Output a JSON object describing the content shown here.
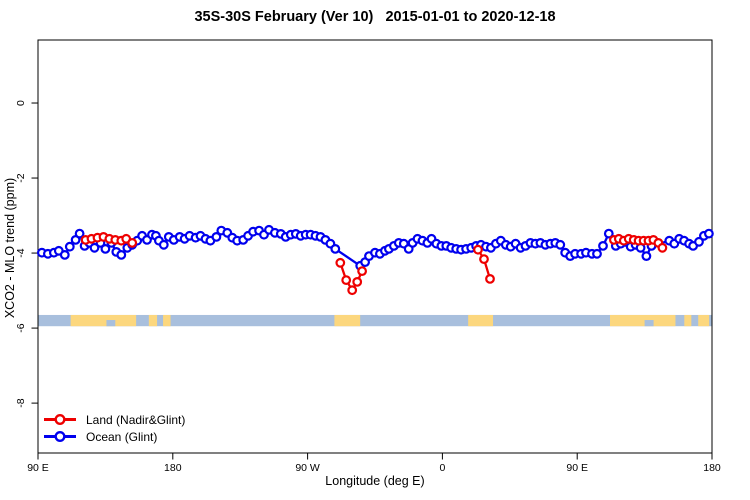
{
  "chart_data": {
    "type": "line",
    "title": "35S-30S February (Ver 10)   2015-01-01 to 2020-12-18",
    "xlabel": "Longitude (deg E)",
    "ylabel": "XCO2 - MLO trend (ppm)",
    "xlim": [
      90,
      540
    ],
    "ylim": [
      -9.33,
      1.68
    ],
    "grid": false,
    "legend_position": "bottom-left",
    "x_ticks": [
      {
        "value": 90,
        "label": "90 E"
      },
      {
        "value": 180,
        "label": "180"
      },
      {
        "value": 270,
        "label": "90 W"
      },
      {
        "value": 360,
        "label": "0"
      },
      {
        "value": 450,
        "label": "90 E"
      },
      {
        "value": 540,
        "label": "180"
      }
    ],
    "y_ticks": [
      {
        "value": 0,
        "label": "0"
      },
      {
        "value": -2,
        "label": "-2"
      },
      {
        "value": -4,
        "label": "-4"
      },
      {
        "value": -6,
        "label": "-6"
      },
      {
        "value": -8,
        "label": "-8"
      }
    ],
    "series": [
      {
        "name": "Land (Nadir&Glint)",
        "color": "#ee0000",
        "marker": "open-circle",
        "segments": [
          [
            [
              121.8,
              -3.65
            ],
            [
              125.7,
              -3.62
            ],
            [
              129.7,
              -3.59
            ],
            [
              133.7,
              -3.57
            ],
            [
              137.7,
              -3.62
            ],
            [
              141.6,
              -3.65
            ],
            [
              145.6,
              -3.67
            ],
            [
              148.9,
              -3.62
            ],
            [
              152.9,
              -3.73
            ]
          ],
          [
            [
              291.8,
              -4.26
            ],
            [
              295.8,
              -4.72
            ],
            [
              299.8,
              -4.99
            ],
            [
              303.1,
              -4.77
            ],
            [
              306.4,
              -4.48
            ]
          ],
          [
            [
              383.8,
              -3.91
            ],
            [
              387.8,
              -4.16
            ],
            [
              391.8,
              -4.69
            ]
          ],
          [
            [
              474.5,
              -3.65
            ],
            [
              477.8,
              -3.62
            ],
            [
              481.1,
              -3.67
            ],
            [
              484.4,
              -3.62
            ],
            [
              487.7,
              -3.65
            ],
            [
              491.0,
              -3.67
            ],
            [
              494.3,
              -3.67
            ],
            [
              497.6,
              -3.67
            ],
            [
              500.9,
              -3.65
            ],
            [
              504.2,
              -3.73
            ],
            [
              506.9,
              -3.86
            ]
          ]
        ]
      },
      {
        "name": "Ocean (Glint)",
        "color": "#0000ee",
        "marker": "open-circle",
        "segments": [
          [
            [
              92.6,
              -3.99
            ],
            [
              96.6,
              -4.02
            ],
            [
              100.6,
              -3.99
            ],
            [
              103.9,
              -3.94
            ],
            [
              107.9,
              -4.05
            ],
            [
              111.2,
              -3.83
            ],
            [
              115.1,
              -3.65
            ],
            [
              117.8,
              -3.48
            ],
            [
              121.1,
              -3.81
            ],
            [
              124.4,
              -3.73
            ],
            [
              127.7,
              -3.86
            ],
            [
              131.7,
              -3.73
            ],
            [
              135.0,
              -3.89
            ],
            [
              139.0,
              -3.73
            ],
            [
              142.3,
              -3.97
            ],
            [
              145.6,
              -4.05
            ],
            [
              149.6,
              -3.86
            ],
            [
              152.9,
              -3.78
            ],
            [
              156.2,
              -3.67
            ],
            [
              159.5,
              -3.54
            ],
            [
              162.8,
              -3.65
            ],
            [
              166.1,
              -3.51
            ],
            [
              168.7,
              -3.54
            ],
            [
              170.7,
              -3.67
            ],
            [
              174.0,
              -3.78
            ],
            [
              177.3,
              -3.57
            ],
            [
              180.7,
              -3.65
            ],
            [
              184.6,
              -3.57
            ],
            [
              187.9,
              -3.62
            ],
            [
              191.2,
              -3.54
            ],
            [
              195.2,
              -3.59
            ],
            [
              198.5,
              -3.54
            ],
            [
              201.8,
              -3.62
            ],
            [
              205.1,
              -3.67
            ],
            [
              209.1,
              -3.57
            ],
            [
              212.4,
              -3.4
            ],
            [
              216.4,
              -3.46
            ],
            [
              219.7,
              -3.59
            ],
            [
              223.0,
              -3.67
            ],
            [
              227.0,
              -3.65
            ],
            [
              230.3,
              -3.54
            ],
            [
              233.6,
              -3.43
            ],
            [
              237.6,
              -3.4
            ],
            [
              240.9,
              -3.51
            ],
            [
              244.2,
              -3.38
            ],
            [
              248.2,
              -3.46
            ],
            [
              252.1,
              -3.49
            ],
            [
              255.4,
              -3.57
            ],
            [
              258.8,
              -3.51
            ],
            [
              262.1,
              -3.49
            ],
            [
              265.4,
              -3.54
            ],
            [
              268.7,
              -3.51
            ],
            [
              272.0,
              -3.51
            ],
            [
              275.3,
              -3.54
            ],
            [
              278.6,
              -3.57
            ],
            [
              281.9,
              -3.65
            ],
            [
              285.2,
              -3.75
            ],
            [
              288.5,
              -3.89
            ],
            [
              305.1,
              -4.34
            ],
            [
              308.4,
              -4.24
            ],
            [
              311.0,
              -4.08
            ],
            [
              315.0,
              -3.99
            ],
            [
              318.3,
              -4.02
            ],
            [
              321.6,
              -3.94
            ],
            [
              324.3,
              -3.89
            ],
            [
              327.6,
              -3.81
            ],
            [
              330.9,
              -3.73
            ],
            [
              334.2,
              -3.75
            ],
            [
              337.5,
              -3.89
            ],
            [
              340.1,
              -3.73
            ],
            [
              343.4,
              -3.62
            ],
            [
              346.7,
              -3.67
            ],
            [
              350.0,
              -3.73
            ],
            [
              352.7,
              -3.62
            ],
            [
              356.0,
              -3.75
            ],
            [
              359.3,
              -3.81
            ],
            [
              362.6,
              -3.81
            ],
            [
              365.9,
              -3.86
            ],
            [
              369.2,
              -3.89
            ],
            [
              372.5,
              -3.91
            ],
            [
              375.8,
              -3.89
            ],
            [
              379.2,
              -3.86
            ],
            [
              382.5,
              -3.81
            ],
            [
              385.8,
              -3.78
            ],
            [
              389.1,
              -3.83
            ],
            [
              392.4,
              -3.86
            ],
            [
              395.7,
              -3.75
            ],
            [
              399.0,
              -3.67
            ],
            [
              402.3,
              -3.78
            ],
            [
              405.6,
              -3.83
            ],
            [
              408.9,
              -3.75
            ],
            [
              412.2,
              -3.86
            ],
            [
              415.5,
              -3.81
            ],
            [
              418.8,
              -3.73
            ],
            [
              422.1,
              -3.75
            ],
            [
              425.4,
              -3.73
            ],
            [
              428.8,
              -3.78
            ],
            [
              432.1,
              -3.75
            ],
            [
              435.4,
              -3.73
            ],
            [
              438.7,
              -3.78
            ],
            [
              442.0,
              -3.99
            ],
            [
              445.3,
              -4.08
            ],
            [
              448.6,
              -4.02
            ],
            [
              452.6,
              -4.02
            ],
            [
              455.9,
              -3.99
            ],
            [
              459.9,
              -4.02
            ],
            [
              463.2,
              -4.02
            ],
            [
              467.2,
              -3.81
            ],
            [
              471.1,
              -3.48
            ],
            [
              475.8,
              -3.81
            ],
            [
              479.1,
              -3.75
            ],
            [
              482.4,
              -3.7
            ],
            [
              485.7,
              -3.83
            ],
            [
              489.0,
              -3.78
            ],
            [
              492.3,
              -3.86
            ],
            [
              496.2,
              -4.08
            ],
            [
              499.6,
              -3.81
            ],
            [
              511.5,
              -3.67
            ],
            [
              514.8,
              -3.75
            ],
            [
              518.1,
              -3.62
            ],
            [
              521.4,
              -3.67
            ],
            [
              524.7,
              -3.75
            ],
            [
              527.4,
              -3.81
            ],
            [
              531.3,
              -3.7
            ],
            [
              534.6,
              -3.54
            ],
            [
              537.9,
              -3.48
            ]
          ]
        ]
      }
    ],
    "land_strip": {
      "v_top": -5.65,
      "v_bottom": -5.95,
      "ocean_color": "#a8bfdd",
      "land_color": "#fcd77e",
      "patches": [
        {
          "from": 111.8,
          "to": 155.5
        },
        {
          "from": 164.0,
          "to": 169.5
        },
        {
          "from": 173.5,
          "to": 178.5
        },
        {
          "from": 287.9,
          "to": 305.1
        },
        {
          "from": 377.2,
          "to": 393.8
        },
        {
          "from": 471.9,
          "to": 515.6
        },
        {
          "from": 521.5,
          "to": 526.2
        },
        {
          "from": 530.8,
          "to": 538.1
        }
      ],
      "notches": [
        {
          "from": 135.7,
          "to": 141.6
        },
        {
          "from": 495.0,
          "to": 501.0
        }
      ]
    }
  }
}
